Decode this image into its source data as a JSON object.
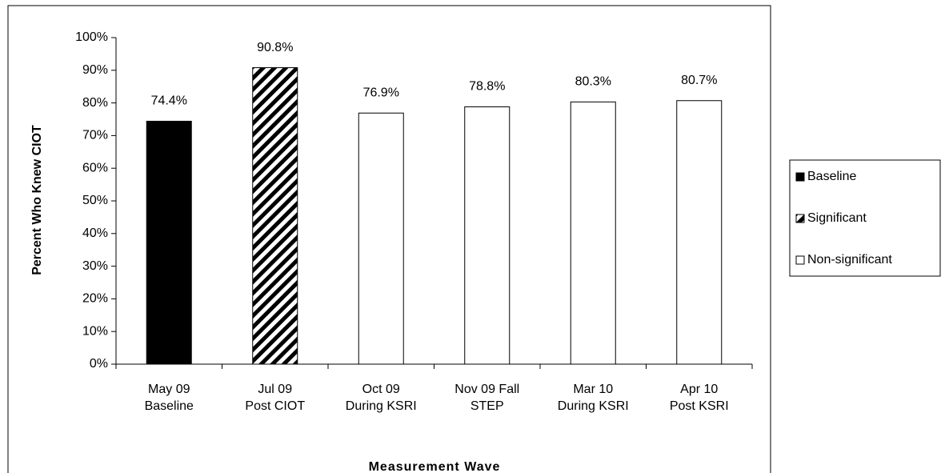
{
  "chart_data": {
    "type": "bar",
    "x_label": "Measurement Wave",
    "y_label": "Percent Who Knew CIOT",
    "categories": [
      [
        "May 09",
        "Baseline"
      ],
      [
        "Jul 09",
        "Post CIOT"
      ],
      [
        "Oct 09",
        "During KSRI"
      ],
      [
        "Nov 09 Fall",
        "STEP"
      ],
      [
        "Mar 10",
        "During KSRI"
      ],
      [
        "Apr 10",
        "Post KSRI"
      ]
    ],
    "values": [
      74.4,
      90.8,
      76.9,
      78.8,
      80.3,
      80.7
    ],
    "value_labels": [
      "74.4%",
      "90.8%",
      "76.9%",
      "78.8%",
      "80.3%",
      "80.7%"
    ],
    "bar_styles": [
      0,
      1,
      2,
      2,
      2,
      2
    ],
    "legend": [
      {
        "name": "Baseline",
        "fill": "#000000"
      },
      {
        "name": "Significant",
        "fill": "hatch"
      },
      {
        "name": "Non-significant",
        "fill": "#ffffff"
      }
    ],
    "ylim": [
      0,
      100
    ],
    "yticks": [
      {
        "value": 0,
        "label": "0%"
      },
      {
        "value": 10,
        "label": "10%"
      },
      {
        "value": 20,
        "label": "20%"
      },
      {
        "value": 30,
        "label": "30%"
      },
      {
        "value": 40,
        "label": "40%"
      },
      {
        "value": 50,
        "label": "50%"
      },
      {
        "value": 60,
        "label": "60%"
      },
      {
        "value": 70,
        "label": "70%"
      },
      {
        "value": 80,
        "label": "80%"
      },
      {
        "value": 90,
        "label": "90%"
      },
      {
        "value": 100,
        "label": "100%"
      }
    ],
    "grid": false
  }
}
